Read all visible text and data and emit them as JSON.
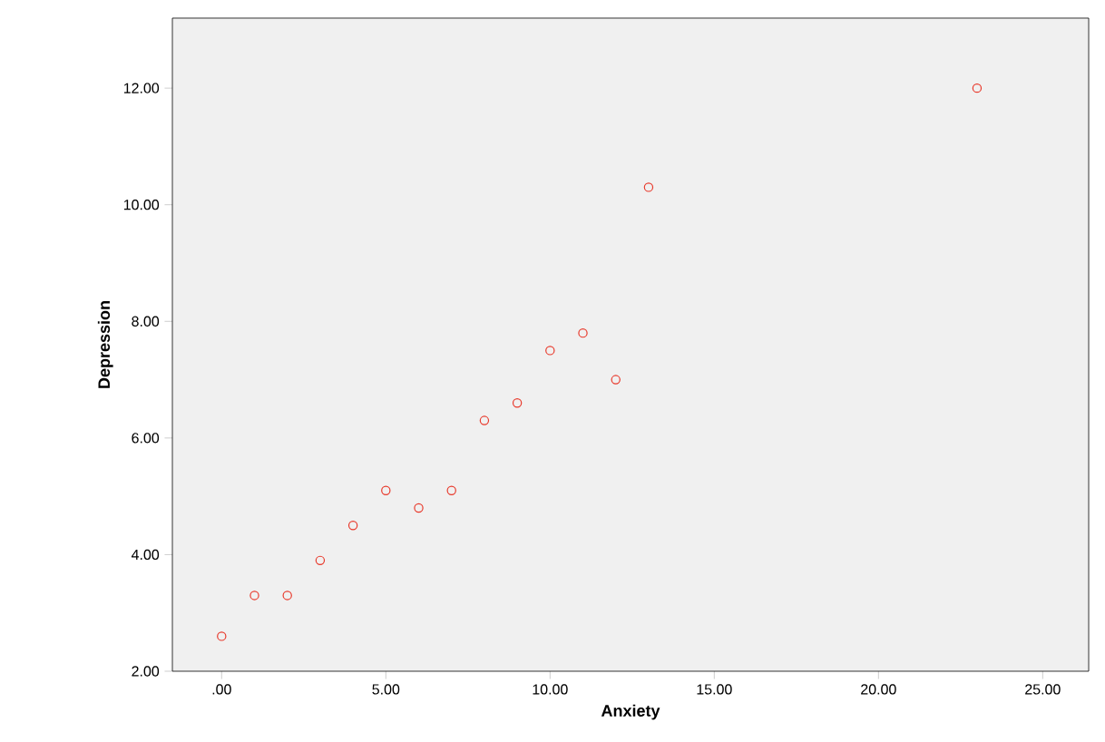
{
  "chart_data": {
    "type": "scatter",
    "xlabel": "Anxiety",
    "ylabel": "Depression",
    "x": [
      0,
      1,
      2,
      3,
      4,
      5,
      6,
      7,
      8,
      9,
      10,
      11,
      12,
      13,
      23
    ],
    "values": [
      2.6,
      3.3,
      3.3,
      3.9,
      4.5,
      5.1,
      4.8,
      5.1,
      6.3,
      6.6,
      7.5,
      7.8,
      7.0,
      10.3,
      12.0
    ],
    "color": "#e8392b",
    "marker": "circle",
    "xlim": [
      -1.5,
      26.4
    ],
    "ylim": [
      2.0,
      13.2
    ],
    "xticks": [
      {
        "value": 0,
        "label": ".00"
      },
      {
        "value": 5,
        "label": "5.00"
      },
      {
        "value": 10,
        "label": "10.00"
      },
      {
        "value": 15,
        "label": "15.00"
      },
      {
        "value": 20,
        "label": "20.00"
      },
      {
        "value": 25,
        "label": "25.00"
      }
    ],
    "yticks": [
      {
        "value": 2,
        "label": "2.00"
      },
      {
        "value": 4,
        "label": "4.00"
      },
      {
        "value": 6,
        "label": "6.00"
      },
      {
        "value": 8,
        "label": "8.00"
      },
      {
        "value": 10,
        "label": "10.00"
      },
      {
        "value": 12,
        "label": "12.00"
      }
    ],
    "grid": false
  }
}
